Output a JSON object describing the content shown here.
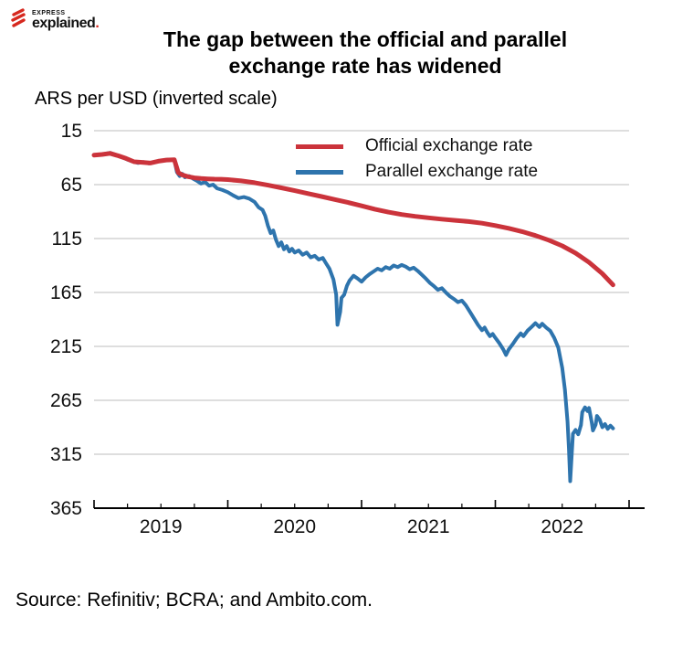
{
  "brand": {
    "kicker": "EXPRESS",
    "name": "explained",
    "dot": "."
  },
  "title_line1": "The gap between the official and parallel",
  "title_line2": "exchange rate has widened",
  "source": "Source: Refinitiv; BCRA; and Ambito.com.",
  "chart_data": {
    "type": "line",
    "title": "The gap between the official and parallel exchange rate has widened",
    "unit_label": "ARS per USD (inverted scale)",
    "y_inverted": true,
    "ylim": [
      15,
      365
    ],
    "y_ticks": [
      15,
      65,
      115,
      165,
      215,
      265,
      315,
      365
    ],
    "xlim": [
      2019,
      2023
    ],
    "x_minor_tick_step": 0.25,
    "x_major_ticks": [
      2019,
      2020,
      2021,
      2022,
      2023
    ],
    "x_labels": [
      {
        "x": 2019.5,
        "label": "2019"
      },
      {
        "x": 2020.5,
        "label": "2020"
      },
      {
        "x": 2021.5,
        "label": "2021"
      },
      {
        "x": 2022.5,
        "label": "2022"
      }
    ],
    "grid": "horizontal",
    "legend_position": "top-inside",
    "colors": {
      "grid": "#c9c9c9",
      "axis": "#000000",
      "official": "#cb333b",
      "parallel": "#2e74ad"
    },
    "series": [
      {
        "id": "official-exchange-rate",
        "name": "Official exchange rate",
        "color": "#cb333b",
        "width": 5,
        "points": [
          [
            2019.0,
            37.6
          ],
          [
            2019.06,
            37.0
          ],
          [
            2019.12,
            36.0
          ],
          [
            2019.18,
            38.2
          ],
          [
            2019.24,
            40.8
          ],
          [
            2019.3,
            43.8
          ],
          [
            2019.36,
            44.3
          ],
          [
            2019.42,
            45.0
          ],
          [
            2019.48,
            43.3
          ],
          [
            2019.54,
            42.2
          ],
          [
            2019.6,
            41.9
          ],
          [
            2019.63,
            54.0
          ],
          [
            2019.66,
            56.0
          ],
          [
            2019.7,
            57.5
          ],
          [
            2019.75,
            58.7
          ],
          [
            2019.8,
            59.3
          ],
          [
            2019.85,
            59.7
          ],
          [
            2019.9,
            59.9
          ],
          [
            2019.95,
            60.0
          ],
          [
            2020.0,
            60.3
          ],
          [
            2020.1,
            61.5
          ],
          [
            2020.2,
            63.2
          ],
          [
            2020.3,
            65.5
          ],
          [
            2020.4,
            68.0
          ],
          [
            2020.5,
            70.6
          ],
          [
            2020.6,
            73.3
          ],
          [
            2020.7,
            76.0
          ],
          [
            2020.8,
            78.8
          ],
          [
            2020.9,
            81.6
          ],
          [
            2021.0,
            84.7
          ],
          [
            2021.1,
            87.8
          ],
          [
            2021.2,
            90.5
          ],
          [
            2021.3,
            92.7
          ],
          [
            2021.4,
            94.4
          ],
          [
            2021.5,
            95.8
          ],
          [
            2021.6,
            97.0
          ],
          [
            2021.7,
            98.1
          ],
          [
            2021.8,
            99.2
          ],
          [
            2021.9,
            100.8
          ],
          [
            2022.0,
            103.0
          ],
          [
            2022.1,
            105.5
          ],
          [
            2022.2,
            108.6
          ],
          [
            2022.3,
            112.2
          ],
          [
            2022.4,
            116.5
          ],
          [
            2022.5,
            121.8
          ],
          [
            2022.6,
            128.5
          ],
          [
            2022.7,
            137.0
          ],
          [
            2022.8,
            147.5
          ],
          [
            2022.88,
            158.0
          ]
        ]
      },
      {
        "id": "parallel-exchange-rate",
        "name": "Parallel exchange rate",
        "color": "#2e74ad",
        "width": 4,
        "points": [
          [
            2019.0,
            37.6
          ],
          [
            2019.04,
            37.2
          ],
          [
            2019.08,
            36.4
          ],
          [
            2019.12,
            35.5
          ],
          [
            2019.16,
            37.4
          ],
          [
            2019.21,
            39.6
          ],
          [
            2019.25,
            41.8
          ],
          [
            2019.29,
            43.6
          ],
          [
            2019.33,
            44.9
          ],
          [
            2019.37,
            44.1
          ],
          [
            2019.41,
            45.3
          ],
          [
            2019.45,
            44.0
          ],
          [
            2019.49,
            43.2
          ],
          [
            2019.53,
            42.3
          ],
          [
            2019.56,
            41.7
          ],
          [
            2019.6,
            41.9
          ],
          [
            2019.62,
            53.5
          ],
          [
            2019.64,
            57.0
          ],
          [
            2019.66,
            55.0
          ],
          [
            2019.68,
            58.2
          ],
          [
            2019.71,
            57.0
          ],
          [
            2019.74,
            59.5
          ],
          [
            2019.77,
            61.5
          ],
          [
            2019.8,
            64.0
          ],
          [
            2019.83,
            62.5
          ],
          [
            2019.86,
            66.0
          ],
          [
            2019.89,
            65.0
          ],
          [
            2019.92,
            68.5
          ],
          [
            2019.96,
            70.0
          ],
          [
            2020.0,
            72.0
          ],
          [
            2020.04,
            75.0
          ],
          [
            2020.08,
            77.5
          ],
          [
            2020.12,
            76.5
          ],
          [
            2020.16,
            78.0
          ],
          [
            2020.2,
            81.0
          ],
          [
            2020.23,
            86.0
          ],
          [
            2020.26,
            88.5
          ],
          [
            2020.28,
            94.0
          ],
          [
            2020.3,
            103.0
          ],
          [
            2020.32,
            110.0
          ],
          [
            2020.34,
            107.5
          ],
          [
            2020.36,
            116.0
          ],
          [
            2020.38,
            122.0
          ],
          [
            2020.4,
            118.5
          ],
          [
            2020.42,
            125.0
          ],
          [
            2020.44,
            122.0
          ],
          [
            2020.46,
            127.0
          ],
          [
            2020.48,
            124.5
          ],
          [
            2020.5,
            128.0
          ],
          [
            2020.53,
            126.0
          ],
          [
            2020.56,
            130.0
          ],
          [
            2020.59,
            128.0
          ],
          [
            2020.62,
            132.5
          ],
          [
            2020.65,
            131.0
          ],
          [
            2020.68,
            134.5
          ],
          [
            2020.71,
            133.0
          ],
          [
            2020.73,
            137.0
          ],
          [
            2020.76,
            143.0
          ],
          [
            2020.79,
            153.0
          ],
          [
            2020.81,
            167.0
          ],
          [
            2020.82,
            195.0
          ],
          [
            2020.84,
            183.0
          ],
          [
            2020.85,
            170.0
          ],
          [
            2020.87,
            167.0
          ],
          [
            2020.89,
            159.0
          ],
          [
            2020.91,
            154.0
          ],
          [
            2020.94,
            149.5
          ],
          [
            2020.97,
            152.0
          ],
          [
            2021.0,
            155.0
          ],
          [
            2021.03,
            151.0
          ],
          [
            2021.06,
            148.0
          ],
          [
            2021.09,
            145.5
          ],
          [
            2021.12,
            143.0
          ],
          [
            2021.15,
            144.5
          ],
          [
            2021.18,
            141.5
          ],
          [
            2021.21,
            143.0
          ],
          [
            2021.24,
            140.0
          ],
          [
            2021.27,
            141.5
          ],
          [
            2021.3,
            139.5
          ],
          [
            2021.33,
            141.0
          ],
          [
            2021.36,
            143.5
          ],
          [
            2021.39,
            142.0
          ],
          [
            2021.42,
            145.0
          ],
          [
            2021.45,
            148.5
          ],
          [
            2021.48,
            152.0
          ],
          [
            2021.51,
            156.0
          ],
          [
            2021.54,
            159.0
          ],
          [
            2021.57,
            162.5
          ],
          [
            2021.6,
            161.0
          ],
          [
            2021.63,
            165.0
          ],
          [
            2021.66,
            168.5
          ],
          [
            2021.69,
            171.0
          ],
          [
            2021.72,
            174.0
          ],
          [
            2021.75,
            172.5
          ],
          [
            2021.78,
            177.0
          ],
          [
            2021.81,
            183.0
          ],
          [
            2021.84,
            189.0
          ],
          [
            2021.87,
            195.0
          ],
          [
            2021.9,
            200.0
          ],
          [
            2021.92,
            197.5
          ],
          [
            2021.94,
            202.0
          ],
          [
            2021.96,
            205.5
          ],
          [
            2021.98,
            203.5
          ],
          [
            2022.0,
            207.0
          ],
          [
            2022.03,
            212.0
          ],
          [
            2022.06,
            218.0
          ],
          [
            2022.08,
            223.0
          ],
          [
            2022.1,
            218.0
          ],
          [
            2022.13,
            213.0
          ],
          [
            2022.16,
            207.5
          ],
          [
            2022.19,
            203.0
          ],
          [
            2022.21,
            205.5
          ],
          [
            2022.24,
            200.5
          ],
          [
            2022.27,
            197.0
          ],
          [
            2022.3,
            193.5
          ],
          [
            2022.33,
            197.0
          ],
          [
            2022.35,
            194.0
          ],
          [
            2022.38,
            197.5
          ],
          [
            2022.41,
            200.5
          ],
          [
            2022.44,
            207.0
          ],
          [
            2022.47,
            216.0
          ],
          [
            2022.5,
            235.0
          ],
          [
            2022.52,
            255.0
          ],
          [
            2022.54,
            285.0
          ],
          [
            2022.55,
            310.0
          ],
          [
            2022.56,
            340.0
          ],
          [
            2022.57,
            318.0
          ],
          [
            2022.58,
            296.0
          ],
          [
            2022.6,
            292.5
          ],
          [
            2022.62,
            296.5
          ],
          [
            2022.64,
            288.0
          ],
          [
            2022.65,
            276.0
          ],
          [
            2022.67,
            271.5
          ],
          [
            2022.69,
            275.0
          ],
          [
            2022.7,
            272.0
          ],
          [
            2022.72,
            285.0
          ],
          [
            2022.73,
            293.0
          ],
          [
            2022.75,
            287.5
          ],
          [
            2022.76,
            279.5
          ],
          [
            2022.78,
            283.0
          ],
          [
            2022.8,
            290.0
          ],
          [
            2022.82,
            287.0
          ],
          [
            2022.84,
            291.5
          ],
          [
            2022.86,
            288.5
          ],
          [
            2022.88,
            291.0
          ]
        ]
      }
    ]
  }
}
